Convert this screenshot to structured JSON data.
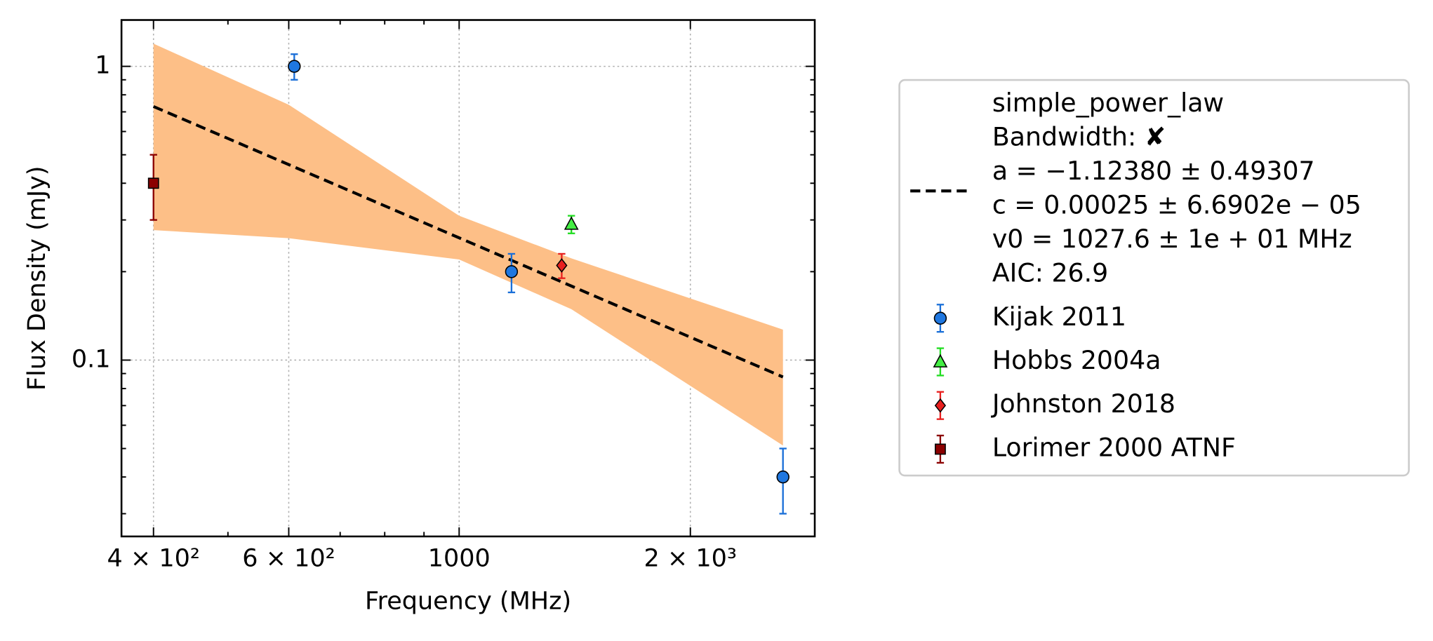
{
  "chart_data": {
    "type": "scatter",
    "x_label": "Frequency (MHz)",
    "y_label": "Flux Density (mJy)",
    "xscale": "log",
    "yscale": "log",
    "grid": true,
    "xlim": [
      363.4,
      2904
    ],
    "ylim": [
      0.0251,
      1.438
    ],
    "xticks": [
      {
        "value": 400,
        "label": "4 × 10²"
      },
      {
        "value": 600,
        "label": "6 × 10²"
      },
      1000,
      {
        "value": 2000,
        "label": "2 × 10³"
      }
    ],
    "xminor_ticks": [
      500,
      700,
      800,
      900
    ],
    "yticks": [
      0.1,
      1
    ],
    "yminor_ticks": [
      0.03,
      0.04,
      0.05,
      0.06,
      0.07,
      0.08,
      0.09,
      0.2,
      0.3,
      0.4,
      0.5,
      0.6,
      0.7,
      0.8,
      0.9
    ],
    "fit": {
      "name_lines": [
        "simple_power_law",
        "Bandwidth: ✘",
        "a = −1.12380 ± 0.49307",
        "c = 0.00025 ± 6.6902e − 05",
        "v0 = 1027.6 ± 1e + 01 MHz",
        "AIC: 26.9"
      ],
      "color": "#000000",
      "band_color": "#fdbf87",
      "x": [
        400,
        2640
      ],
      "values": [
        0.73,
        0.0876
      ],
      "band_x": [
        400,
        600,
        1000,
        1400,
        2640
      ],
      "band_upper": [
        1.195,
        0.74,
        0.31,
        0.222,
        0.127
      ],
      "band_lower": [
        0.277,
        0.26,
        0.22,
        0.149,
        0.0512
      ]
    },
    "series": [
      {
        "name": "Kijak 2011",
        "marker": "circle",
        "color": "#1f77e0",
        "err_color": "#1a6fd8",
        "x": [
          610,
          1170,
          2640
        ],
        "values": [
          1.0,
          0.2,
          0.04
        ],
        "errors": [
          0.1,
          0.03,
          0.01
        ]
      },
      {
        "name": "Hobbs 2004a",
        "marker": "triangle",
        "color": "#44ee44",
        "err_color": "#22dd22",
        "x": [
          1400
        ],
        "values": [
          0.29
        ],
        "errors": [
          0.02
        ]
      },
      {
        "name": "Johnston 2018",
        "marker": "diamond",
        "color": "#e8201f",
        "err_color": "#e8201f",
        "x": [
          1360
        ],
        "values": [
          0.21
        ],
        "errors": [
          0.02
        ]
      },
      {
        "name": "Lorimer 2000 ATNF",
        "marker": "square",
        "color": "#8b0000",
        "err_color": "#8b0000",
        "x": [
          400
        ],
        "values": [
          0.4
        ],
        "errors": [
          0.1
        ]
      }
    ]
  }
}
